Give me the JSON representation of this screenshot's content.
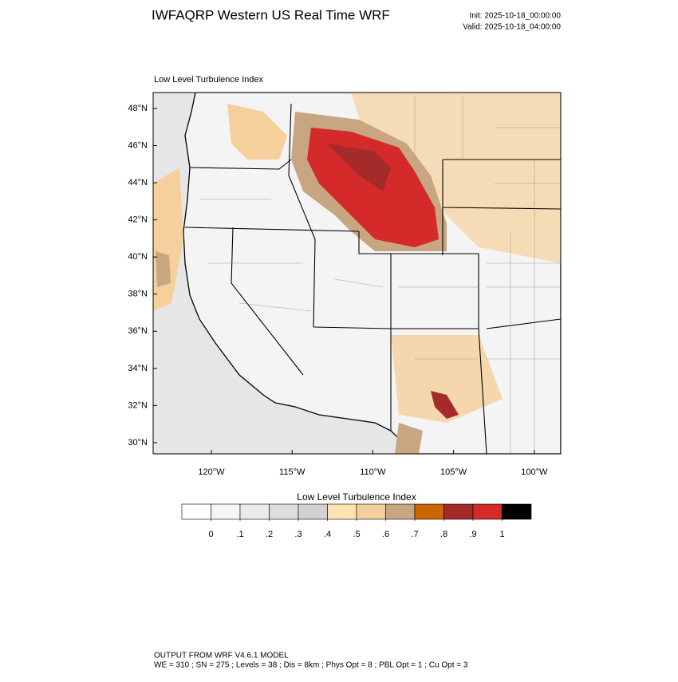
{
  "header": {
    "title": "IWFAQRP Western US Real Time WRF",
    "init": "Init: 2025-10-18_00:00:00",
    "valid": "Valid: 2025-10-18_04:00:00"
  },
  "map": {
    "title": "Low Level Turbulence Index",
    "lat_labels": [
      "48°N",
      "46°N",
      "44°N",
      "42°N",
      "40°N",
      "38°N",
      "36°N",
      "34°N",
      "32°N",
      "30°N"
    ],
    "lon_labels": [
      "120°W",
      "115°W",
      "110°W",
      "105°W",
      "100°W"
    ]
  },
  "colorbar": {
    "title": "Low Level Turbulence Index",
    "colors": [
      "#ffffff",
      "#f5f5f5",
      "#ebebeb",
      "#dedede",
      "#d1d1d1",
      "#ffe3b3",
      "#f5d09c",
      "#c9a682",
      "#cc6600",
      "#a52a2a",
      "#d42a2a",
      "#000000"
    ],
    "labels": [
      0,
      {
        "value": 0.1,
        "label": ".1"
      },
      {
        "value": 0.2,
        "label": ".2"
      },
      {
        "value": 0.3,
        "label": ".3"
      },
      {
        "value": 0.4,
        "label": ".4"
      },
      {
        "value": 0.5,
        "label": ".5"
      },
      {
        "value": 0.6,
        "label": ".6"
      },
      {
        "value": 0.7,
        "label": ".7"
      },
      {
        "value": 0.8,
        "label": ".8"
      },
      {
        "value": 0.9,
        "label": ".9"
      },
      1
    ]
  },
  "footer": {
    "line1": "OUTPUT FROM WRF V4.6.1 MODEL",
    "line2": "WE = 310 ; SN = 275 ; Levels = 38 ; Dis = 8km ; Phys Opt = 8 ; PBL Opt = 1 ; Cu Opt = 3"
  }
}
